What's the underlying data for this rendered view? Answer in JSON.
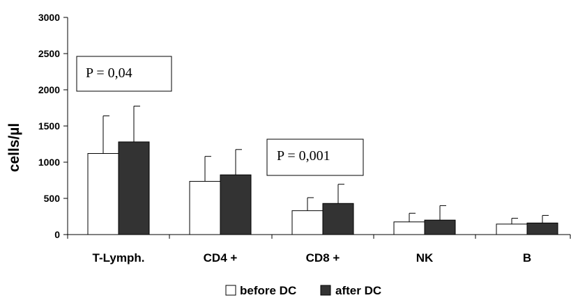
{
  "chart_data": {
    "type": "bar",
    "ylabel": "cells/µl",
    "ylim": [
      0,
      3000
    ],
    "yticks": [
      0,
      500,
      1000,
      1500,
      2000,
      2500,
      3000
    ],
    "grid": false,
    "categories": [
      "T-Lymph.",
      "CD4 +",
      "CD8 +",
      "NK",
      "B"
    ],
    "series": [
      {
        "name": "before DC",
        "color": "#ffffff",
        "values": [
          1120,
          735,
          330,
          175,
          145
        ],
        "error_plus": [
          520,
          345,
          180,
          120,
          80
        ]
      },
      {
        "name": "after DC",
        "color": "#333333",
        "values": [
          1280,
          825,
          430,
          200,
          160
        ],
        "error_plus": [
          495,
          350,
          265,
          200,
          105
        ]
      }
    ],
    "legend_position": "bottom",
    "annotations": [
      {
        "text": "P = 0,04",
        "category": "T-Lymph."
      },
      {
        "text": "P = 0,001",
        "category": "CD8 +"
      }
    ]
  }
}
